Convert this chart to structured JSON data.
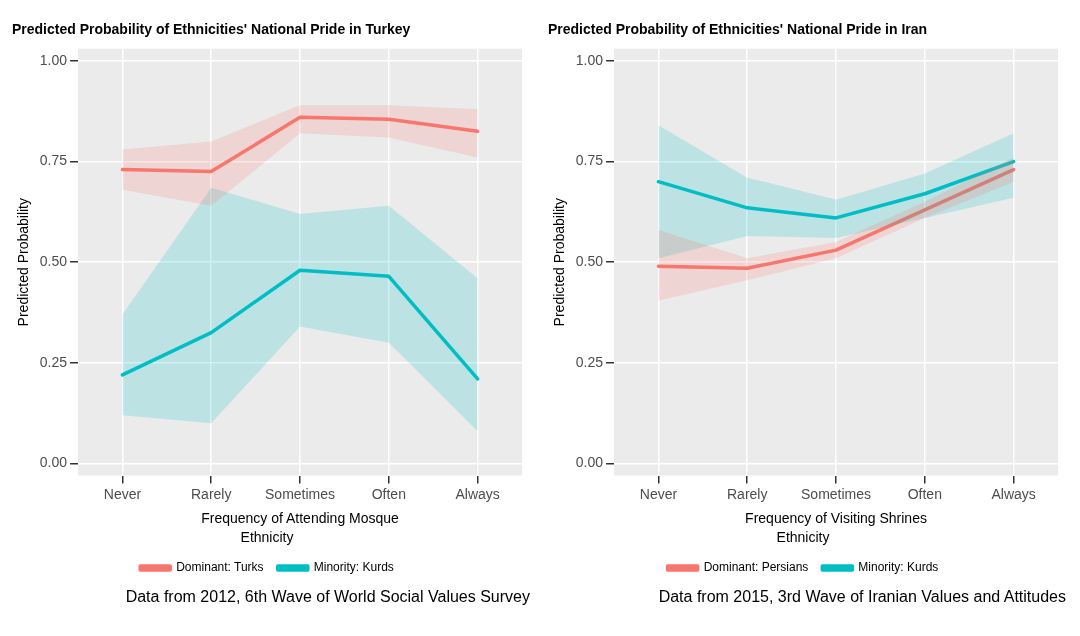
{
  "chart_data": [
    {
      "type": "line",
      "title": "Predicted Probability of Ethnicities' National Pride in Turkey",
      "xlabel": "Frequency of Attending Mosque",
      "ylabel": "Predicted Probability",
      "legend_title": "Ethnicity",
      "legend": "bottom",
      "grid": true,
      "categories": [
        "Never",
        "Rarely",
        "Sometimes",
        "Often",
        "Always"
      ],
      "ylim": [
        -0.03,
        1.03
      ],
      "yticks": [
        {
          "value": 0,
          "label": "0.00"
        },
        {
          "value": 0.25,
          "label": "0.25"
        },
        {
          "value": 0.5,
          "label": "0.50"
        },
        {
          "value": 0.75,
          "label": "0.75"
        },
        {
          "value": 1,
          "label": "1.00"
        }
      ],
      "series": [
        {
          "name": "Dominant: Turks",
          "color": "#f8766d",
          "values": [
            0.73,
            0.725,
            0.86,
            0.855,
            0.825
          ],
          "lower": [
            0.68,
            0.64,
            0.82,
            0.81,
            0.76
          ],
          "upper": [
            0.78,
            0.8,
            0.89,
            0.89,
            0.88
          ]
        },
        {
          "name": "Minority: Kurds",
          "color": "#00bfc4",
          "values": [
            0.22,
            0.325,
            0.48,
            0.465,
            0.21
          ],
          "lower": [
            0.12,
            0.1,
            0.34,
            0.3,
            0.08
          ],
          "upper": [
            0.37,
            0.685,
            0.62,
            0.64,
            0.46
          ]
        }
      ],
      "annotations": [
        "Data from 2012, 6th Wave of World Social Values Survey"
      ]
    },
    {
      "type": "line",
      "title": "Predicted Probability of Ethnicities' National Pride in Iran",
      "xlabel": "Frequency of Visiting Shrines",
      "ylabel": "Predicted Probability",
      "legend_title": "Ethnicity",
      "legend": "bottom",
      "grid": true,
      "categories": [
        "Never",
        "Rarely",
        "Sometimes",
        "Often",
        "Always"
      ],
      "ylim": [
        -0.03,
        1.03
      ],
      "yticks": [
        {
          "value": 0,
          "label": "0.00"
        },
        {
          "value": 0.25,
          "label": "0.25"
        },
        {
          "value": 0.5,
          "label": "0.50"
        },
        {
          "value": 0.75,
          "label": "0.75"
        },
        {
          "value": 1,
          "label": "1.00"
        }
      ],
      "series": [
        {
          "name": "Dominant: Persians",
          "color": "#f8766d",
          "values": [
            0.49,
            0.485,
            0.53,
            0.63,
            0.73
          ],
          "lower": [
            0.405,
            0.455,
            0.51,
            0.61,
            0.7
          ],
          "upper": [
            0.58,
            0.51,
            0.55,
            0.65,
            0.76
          ]
        },
        {
          "name": "Minority: Kurds",
          "color": "#00bfc4",
          "values": [
            0.7,
            0.635,
            0.61,
            0.67,
            0.75
          ],
          "lower": [
            0.51,
            0.565,
            0.56,
            0.61,
            0.66
          ],
          "upper": [
            0.84,
            0.71,
            0.655,
            0.72,
            0.82
          ]
        }
      ],
      "annotations": [
        "Data from 2015, 3rd Wave of Iranian Values and Attitudes"
      ]
    }
  ]
}
